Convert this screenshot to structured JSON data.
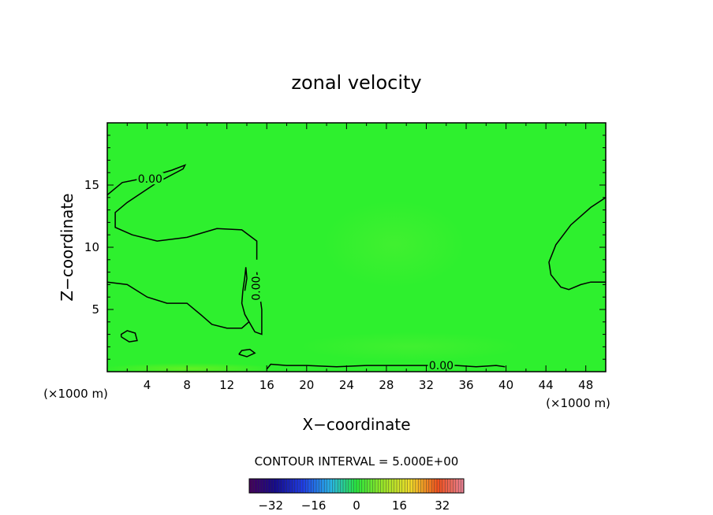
{
  "chart_data": {
    "type": "heatmap",
    "title": "zonal velocity",
    "xlabel": "X−coordinate",
    "ylabel": "Z−coordinate",
    "x_unit_left": "(×1000 m)",
    "x_unit_right": "(×1000 m)",
    "xlim": [
      0,
      50
    ],
    "ylim": [
      0,
      20
    ],
    "x_ticks": [
      4,
      8,
      12,
      16,
      20,
      24,
      28,
      32,
      36,
      40,
      44,
      48
    ],
    "x_tick_labels": [
      "4",
      "8",
      "12",
      "16",
      "20",
      "24",
      "28",
      "32",
      "36",
      "40",
      "44",
      "48"
    ],
    "y_ticks": [
      5,
      10,
      15
    ],
    "y_tick_labels": [
      "5",
      "10",
      "15"
    ],
    "background_color": "#2ef02e",
    "contour_value_label": "0.00",
    "contour_interval_text": "CONTOUR INTERVAL = 5.000E+00",
    "colorbar": {
      "range": [
        -40,
        40
      ],
      "ticks": [
        -32,
        -16,
        0,
        16,
        32
      ],
      "tick_labels": [
        "−32",
        "−16",
        "0",
        "16",
        "32"
      ]
    },
    "contour_lines": [
      {
        "name": "upper-left-zero-contour",
        "label": "0.00",
        "points": [
          [
            0,
            14.2
          ],
          [
            1.5,
            15.2
          ],
          [
            4,
            15.6
          ],
          [
            6.5,
            16.2
          ],
          [
            7.8,
            16.6
          ],
          [
            7.6,
            16.3
          ],
          [
            5,
            15.2
          ],
          [
            2,
            13.6
          ],
          [
            0.8,
            12.8
          ],
          [
            0.8,
            11.6
          ],
          [
            2.5,
            11.0
          ],
          [
            5,
            10.5
          ],
          [
            8,
            10.8
          ],
          [
            11,
            11.5
          ],
          [
            13.5,
            11.4
          ],
          [
            15,
            10.5
          ],
          [
            15,
            9.0
          ]
        ]
      },
      {
        "name": "lower-left-zero-contour",
        "points": [
          [
            0,
            7.2
          ],
          [
            2,
            7.0
          ],
          [
            4,
            6.0
          ],
          [
            6,
            5.5
          ],
          [
            8,
            5.5
          ],
          [
            9.5,
            4.5
          ],
          [
            10.5,
            3.8
          ],
          [
            12,
            3.5
          ],
          [
            13.5,
            3.5
          ],
          [
            14.2,
            4.0
          ]
        ]
      },
      {
        "name": "center-left-zero-contour",
        "label": "0.00",
        "points": [
          [
            13.8,
            6.5
          ],
          [
            14.0,
            7.5
          ],
          [
            13.9,
            8.4
          ],
          [
            13.8,
            7.6
          ],
          [
            13.6,
            6.5
          ],
          [
            13.5,
            5.5
          ],
          [
            13.8,
            4.6
          ],
          [
            14.8,
            3.2
          ],
          [
            15.5,
            3.0
          ],
          [
            15.5,
            5.0
          ],
          [
            15.2,
            6.8
          ],
          [
            15.0,
            8.0
          ]
        ]
      },
      {
        "name": "small-closed-contour-left",
        "points": [
          [
            1.4,
            2.8
          ],
          [
            2.2,
            2.4
          ],
          [
            3.0,
            2.5
          ],
          [
            2.8,
            3.1
          ],
          [
            2.0,
            3.3
          ],
          [
            1.4,
            3.0
          ],
          [
            1.4,
            2.8
          ]
        ]
      },
      {
        "name": "small-closed-contour-center",
        "points": [
          [
            13.2,
            1.4
          ],
          [
            14.0,
            1.2
          ],
          [
            14.8,
            1.5
          ],
          [
            14.3,
            1.8
          ],
          [
            13.5,
            1.7
          ],
          [
            13.2,
            1.4
          ]
        ]
      },
      {
        "name": "bottom-zero-contour",
        "label": "0.00",
        "points": [
          [
            16.0,
            0.2
          ],
          [
            16.4,
            0.6
          ],
          [
            18,
            0.5
          ],
          [
            20,
            0.5
          ],
          [
            23,
            0.4
          ],
          [
            26,
            0.5
          ],
          [
            29,
            0.5
          ],
          [
            32,
            0.5
          ],
          [
            35,
            0.5
          ],
          [
            37,
            0.4
          ],
          [
            39,
            0.5
          ],
          [
            39.9,
            0.4
          ]
        ]
      },
      {
        "name": "right-zero-contour",
        "points": [
          [
            50,
            14.0
          ],
          [
            48.5,
            13.2
          ],
          [
            46.5,
            11.8
          ],
          [
            45,
            10.2
          ],
          [
            44.3,
            8.8
          ],
          [
            44.5,
            7.8
          ],
          [
            45.5,
            6.8
          ],
          [
            46.3,
            6.6
          ],
          [
            47.5,
            7.0
          ],
          [
            48.5,
            7.2
          ],
          [
            50,
            7.2
          ]
        ]
      }
    ]
  }
}
